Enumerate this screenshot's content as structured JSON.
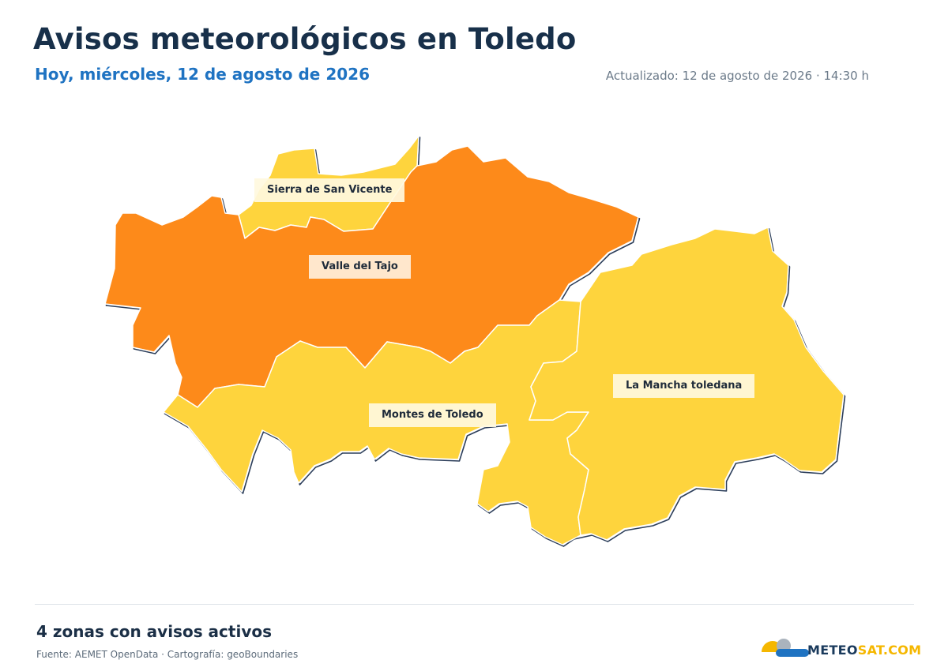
{
  "header": {
    "title": "Avisos meteorológicos en Toledo",
    "subtitle": "Hoy, miércoles, 12 de agosto de 2026",
    "updated": "Actualizado: 12 de agosto de 2026 · 14:30 h"
  },
  "colors": {
    "yellow_warning": "#fed43d",
    "orange_warning": "#fd8a1a",
    "outline": "#2c3e5a",
    "title": "#18304a",
    "subtitle": "#1f73c2"
  },
  "zones": [
    {
      "name": "Sierra de San Vicente",
      "level": "yellow"
    },
    {
      "name": "Valle del Tajo",
      "level": "orange"
    },
    {
      "name": "Montes de Toledo",
      "level": "yellow"
    },
    {
      "name": "La Mancha toledana",
      "level": "yellow"
    }
  ],
  "footer": {
    "summary": "4 zonas con avisos activos",
    "source": "Fuente: AEMET OpenData · Cartografía: geoBoundaries",
    "brand_a": "METEO",
    "brand_b": "SAT.COM"
  }
}
